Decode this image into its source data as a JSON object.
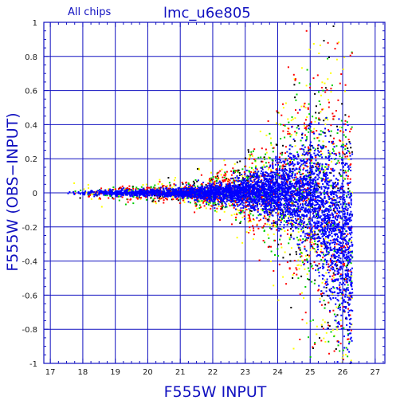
{
  "chart_data": {
    "type": "scatter",
    "title": "lmc_u6e805",
    "subtitle": "All chips",
    "xlabel": "F555W INPUT",
    "ylabel": "F555W (OBS−INPUT)",
    "xlim": [
      16.8,
      27.3
    ],
    "ylim": [
      -1,
      1
    ],
    "x_ticks": [
      "17",
      "18",
      "19",
      "20",
      "21",
      "22",
      "23",
      "24",
      "25",
      "26",
      "27"
    ],
    "y_ticks": [
      "1",
      "0.8",
      "0.6",
      "0.4",
      "0.2",
      "0",
      "-0.2",
      "-0.4",
      "-0.6",
      "-0.8",
      "-1"
    ],
    "grid": true,
    "series_colors": [
      "#0000ff",
      "#ff0000",
      "#00cc00",
      "#ffff00",
      "#000000"
    ],
    "axis_color": "#1010c0",
    "envelope": {
      "description_points": [
        {
          "x": 17.4,
          "spread": 0.02
        },
        {
          "x": 19.0,
          "spread": 0.025
        },
        {
          "x": 21.0,
          "spread": 0.04
        },
        {
          "x": 22.5,
          "spread": 0.09
        },
        {
          "x": 23.5,
          "spread": 0.17
        },
        {
          "x": 24.5,
          "spread": 0.32
        },
        {
          "x": 25.0,
          "spread": 0.45
        },
        {
          "x": 25.5,
          "spread": 0.6
        },
        {
          "x": 26.2,
          "spread": 0.8
        }
      ]
    }
  }
}
